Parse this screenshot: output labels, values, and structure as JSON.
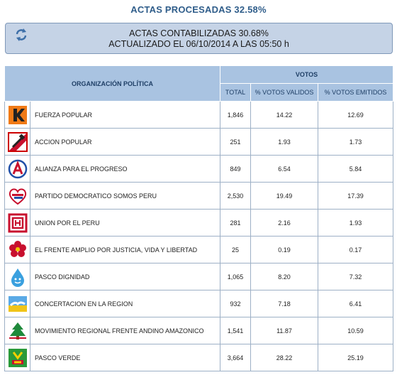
{
  "header": {
    "title": "ACTAS PROCESADAS 32.58%",
    "status_line1": "ACTAS CONTABILIZADAS 30.68%",
    "status_line2": "ACTUALIZADO EL 06/10/2014 A LAS 05:50 h",
    "refresh_icon": "refresh-icon"
  },
  "table": {
    "col_org": "ORGANIZACIÓN POLÍTICA",
    "col_votos": "VOTOS",
    "col_total": "TOTAL",
    "col_validos": "% VOTOS VALIDOS",
    "col_emitidos": "% VOTOS EMITIDOS",
    "rows": [
      {
        "name": "FUERZA POPULAR",
        "total": "1,846",
        "validos": "14.22",
        "emitidos": "12.69",
        "logo": "fuerza-popular-logo"
      },
      {
        "name": "ACCION POPULAR",
        "total": "251",
        "validos": "1.93",
        "emitidos": "1.73",
        "logo": "accion-popular-logo"
      },
      {
        "name": "ALIANZA PARA EL PROGRESO",
        "total": "849",
        "validos": "6.54",
        "emitidos": "5.84",
        "logo": "alianza-progreso-logo"
      },
      {
        "name": "PARTIDO DEMOCRATICO SOMOS PERU",
        "total": "2,530",
        "validos": "19.49",
        "emitidos": "17.39",
        "logo": "somos-peru-logo"
      },
      {
        "name": "UNION POR EL PERU",
        "total": "281",
        "validos": "2.16",
        "emitidos": "1.93",
        "logo": "union-peru-logo"
      },
      {
        "name": "EL FRENTE AMPLIO POR JUSTICIA, VIDA Y LIBERTAD",
        "total": "25",
        "validos": "0.19",
        "emitidos": "0.17",
        "logo": "frente-amplio-logo"
      },
      {
        "name": "PASCO DIGNIDAD",
        "total": "1,065",
        "validos": "8.20",
        "emitidos": "7.32",
        "logo": "pasco-dignidad-logo"
      },
      {
        "name": "CONCERTACION EN LA REGION",
        "total": "932",
        "validos": "7.18",
        "emitidos": "6.41",
        "logo": "concertacion-logo"
      },
      {
        "name": "MOVIMIENTO REGIONAL FRENTE ANDINO AMAZONICO",
        "total": "1,541",
        "validos": "11.87",
        "emitidos": "10.59",
        "logo": "andino-amazonico-logo"
      },
      {
        "name": "PASCO VERDE",
        "total": "3,664",
        "validos": "28.22",
        "emitidos": "25.19",
        "logo": "pasco-verde-logo"
      }
    ]
  },
  "colors": {
    "header_bg": "#a9c3e1",
    "status_bg": "#c5d3e6",
    "title": "#2f5d8a"
  }
}
